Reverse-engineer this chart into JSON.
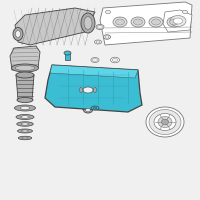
{
  "background_color": "#f0f0f0",
  "highlight_color": "#3bbdd4",
  "outline_color": "#444444",
  "part_line_color": "#777777",
  "light_gray": "#c8c8c8",
  "mid_gray": "#aaaaaa",
  "dark_gray": "#888888",
  "white": "#ffffff",
  "fig_width": 2.0,
  "fig_height": 2.0,
  "dpi": 100
}
